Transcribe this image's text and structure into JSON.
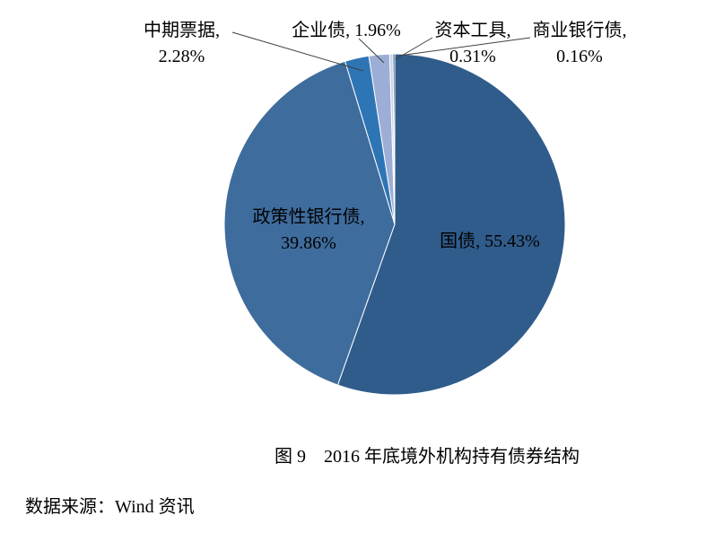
{
  "chart_data": {
    "type": "pie",
    "title": "图 9　2016 年底境外机构持有债券结构",
    "source": "数据来源：Wind 资讯",
    "direction": "clockwise",
    "start_angle_deg": 0,
    "legend_position": "none",
    "grid": false,
    "categories": [
      "国债",
      "政策性银行债",
      "中期票据",
      "企业债",
      "资本工具",
      "商业银行债"
    ],
    "values": [
      55.43,
      39.86,
      2.28,
      1.96,
      0.31,
      0.16
    ],
    "colors": [
      "#305C8C",
      "#3E6C9D",
      "#2E75B6",
      "#9DAED6",
      "#C6D4E8",
      "#17375E"
    ],
    "labels": {
      "treasury": "国债, 55.43%",
      "policy_bank_line1": "政策性银行债,",
      "policy_bank_line2": "39.86%",
      "mtn_line1": "中期票据,",
      "mtn_line2": "2.28%",
      "enterprise": "企业债, 1.96%",
      "capital_line1": "资本工具,",
      "capital_line2": "0.31%",
      "commercial_line1": "商业银行债,",
      "commercial_line2": "0.16%"
    }
  },
  "caption": "图 9　2016 年底境外机构持有债券结构",
  "source_text": "数据来源：Wind 资讯"
}
